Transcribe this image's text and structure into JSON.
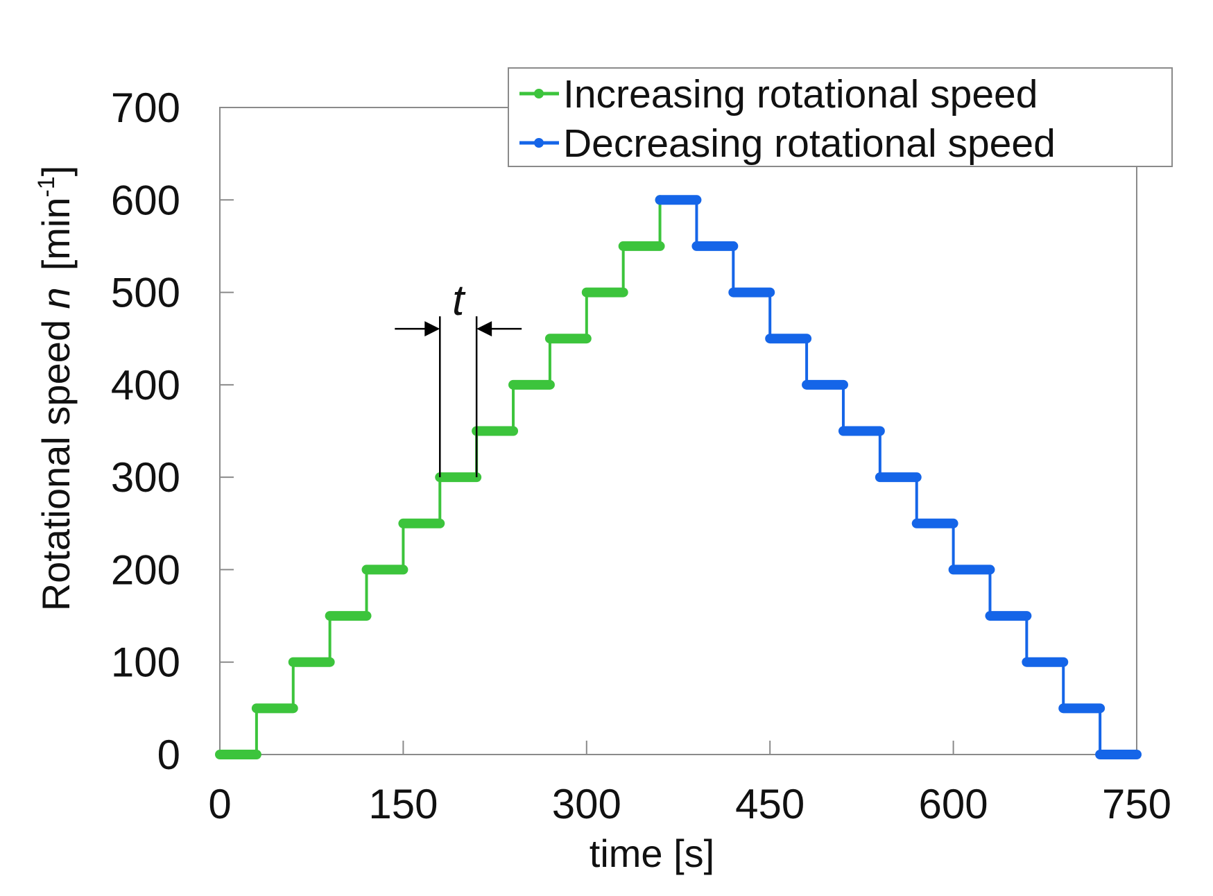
{
  "chart_data": {
    "type": "line",
    "title": "",
    "xlabel": "time [s]",
    "ylabel": {
      "prefix": "Rotational speed ",
      "symbol": "n",
      "unit_base": "[min",
      "unit_sup": "-1",
      "unit_end": "]"
    },
    "xlim": [
      0,
      750
    ],
    "ylim": [
      0,
      700
    ],
    "xticks": [
      0,
      150,
      300,
      450,
      600,
      750
    ],
    "yticks": [
      0,
      100,
      200,
      300,
      400,
      500,
      600,
      700
    ],
    "xtick_labels": [
      "0",
      "150",
      "300",
      "450",
      "600",
      "750"
    ],
    "ytick_labels": [
      "0",
      "100",
      "200",
      "300",
      "400",
      "500",
      "600",
      "700"
    ],
    "grid": false,
    "legend_position": "top-right",
    "series": [
      {
        "name": "Increasing rotational speed",
        "color": "#3cc43c",
        "step_duration": 30,
        "levels": [
          0,
          50,
          100,
          150,
          200,
          250,
          300,
          350,
          400,
          450,
          500,
          550,
          600
        ],
        "start_time": 0,
        "last_step_end": 360
      },
      {
        "name": "Decreasing rotational speed",
        "color": "#1565e8",
        "step_duration": 30,
        "levels": [
          600,
          550,
          500,
          450,
          400,
          350,
          300,
          250,
          200,
          150,
          100,
          50,
          0
        ],
        "start_time": 360,
        "last_step_end": 750
      }
    ],
    "annotations": [
      {
        "text": "t",
        "from_time": 180,
        "to_time": 210,
        "level": 300
      }
    ]
  }
}
